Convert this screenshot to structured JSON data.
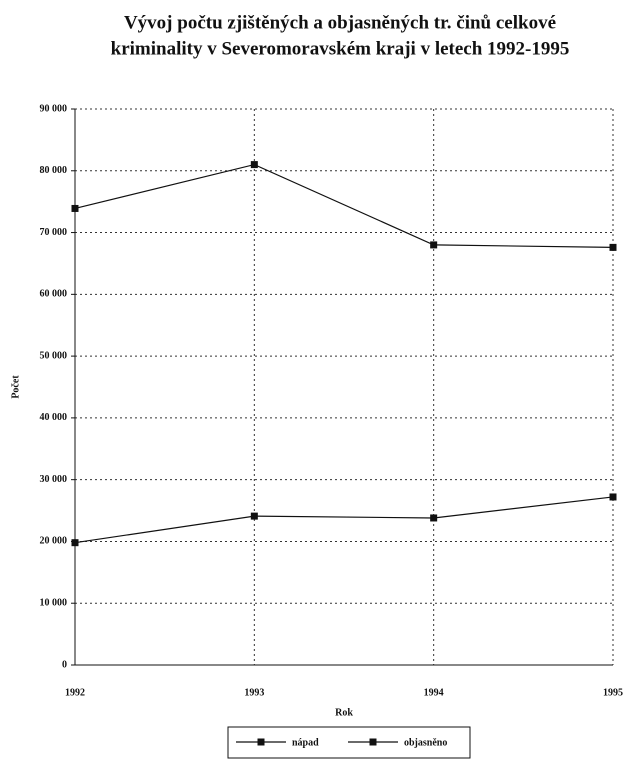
{
  "chart_data": {
    "type": "line",
    "title": [
      "Vývoj počtu zjištěných a objasněných tr. činů celkové",
      "kriminality v Severomoravském kraji v letech 1992-1995"
    ],
    "x_label": "Rok",
    "y_label": "Počet",
    "categories": [
      "1992",
      "1993",
      "1994",
      "1995"
    ],
    "series": [
      {
        "name": "nápad",
        "color": "#111111",
        "values": [
          73900,
          81000,
          68000,
          67600
        ]
      },
      {
        "name": "objasněno",
        "color": "#111111",
        "values": [
          19800,
          24100,
          23800,
          27200
        ]
      }
    ],
    "ylim": [
      0,
      90000
    ],
    "yticks": [
      0,
      {
        "value": 10000,
        "label": "10 000"
      },
      {
        "value": 20000,
        "label": "20 000"
      },
      {
        "value": 30000,
        "label": "30 000"
      },
      {
        "value": 40000,
        "label": "40 000"
      },
      {
        "value": 50000,
        "label": "50 000"
      },
      {
        "value": 60000,
        "label": "60 000"
      },
      {
        "value": 70000,
        "label": "70 000"
      },
      {
        "value": 80000,
        "label": "80 000"
      },
      {
        "value": 90000,
        "label": "90 000"
      }
    ],
    "grid": true,
    "legend": "bottom"
  }
}
